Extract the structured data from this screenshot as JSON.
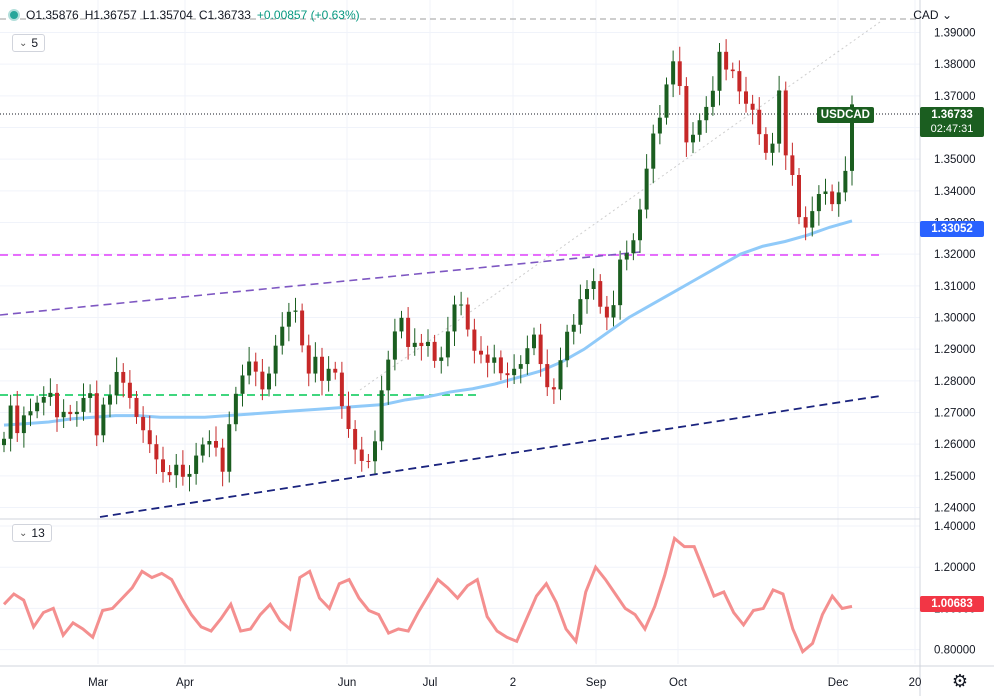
{
  "legend": {
    "open": "O1.35876",
    "high": "H1.36757",
    "low": "L1.35704",
    "close": "C1.36733",
    "change": "+0.00857 (+0.63%)"
  },
  "main_indicator_length": "5",
  "lower_indicator_length": "13",
  "currency": "CAD",
  "symbol_tag": {
    "symbol": "USDCAD",
    "price": "1.36733",
    "countdown": "02:47:31",
    "color": "#1b5e20"
  },
  "ma_tag": {
    "value": "1.33052",
    "color": "#2962ff"
  },
  "lower_tag": {
    "value": "1.00683",
    "color": "#f23645"
  },
  "colors": {
    "up": "#1b5e20",
    "down": "#c62828",
    "ma": "#90caf9",
    "oscillator": "#f48f8f",
    "magenta_line": "#e040fb",
    "green_line": "#00c853",
    "purple_line": "#7e57c2",
    "navy_line": "#1a237e",
    "gray_line": "#9e9e9e"
  },
  "chart_data": [
    {
      "type": "candlestick",
      "title": "USDCAD",
      "ylim": [
        1.237,
        1.399
      ],
      "y_ticks": [
        "1.39000",
        "1.38000",
        "1.37000",
        "1.36000",
        "1.35000",
        "1.34000",
        "1.33000",
        "1.32000",
        "1.31000",
        "1.30000",
        "1.29000",
        "1.28000",
        "1.27000",
        "1.26000",
        "1.25000",
        "1.24000"
      ],
      "x_ticks": [
        "Mar",
        "Apr",
        "Jun",
        "Jul",
        "2",
        "Sep",
        "Oct",
        "Dec",
        "20"
      ],
      "series": [
        {
          "values": [
            1.2617,
            1.2722,
            1.2635,
            1.2691,
            1.2704,
            1.2731,
            1.2749,
            1.2762,
            1.2685,
            1.2702,
            1.2695,
            1.2702,
            1.2746,
            1.2761,
            1.2628,
            1.2725,
            1.2754,
            1.2828,
            1.2794,
            1.2746,
            1.2686,
            1.2644,
            1.26,
            1.2552,
            1.2512,
            1.2502,
            1.2535,
            1.2497,
            1.2506,
            1.2564,
            1.2599,
            1.261,
            1.2589,
            1.2513,
            1.2663,
            1.2759,
            1.2817,
            1.2861,
            1.2829,
            1.2773,
            1.2823,
            1.2911,
            1.2971,
            1.3018,
            1.3022,
            1.2912,
            1.2823,
            1.2876,
            1.28,
            1.2838,
            1.2826,
            1.272,
            1.2648,
            1.2583,
            1.2547,
            1.2546,
            1.2609,
            1.277,
            1.2867,
            1.2956,
            1.2999,
            1.2907,
            1.292,
            1.291,
            1.2923,
            1.2863,
            1.2874,
            1.2956,
            1.3041,
            1.3041,
            1.2962,
            1.2895,
            1.2883,
            1.2857,
            1.2874,
            1.2824,
            1.2818,
            1.2838,
            1.2853,
            1.2903,
            1.2946,
            1.2853,
            1.278,
            1.2773,
            1.2865,
            1.2955,
            1.2977,
            1.3058,
            1.309,
            1.3115,
            1.3034,
            1.3,
            1.3039,
            1.3183,
            1.3203,
            1.3244,
            1.3341,
            1.347,
            1.3581,
            1.3631,
            1.3736,
            1.3809,
            1.3731,
            1.3553,
            1.3577,
            1.3623,
            1.3665,
            1.3716,
            1.3839,
            1.3783,
            1.3778,
            1.3714,
            1.3675,
            1.3656,
            1.3579,
            1.352,
            1.3549,
            1.3717,
            1.3512,
            1.345,
            1.3317,
            1.3284,
            1.3336,
            1.339,
            1.3398,
            1.3358,
            1.3395,
            1.3463,
            1.3673
          ]
        },
        {
          "name": "MA",
          "values": [
            1.266,
            1.2665,
            1.267,
            1.268,
            1.2685,
            1.269,
            1.269,
            1.2685,
            1.2685,
            1.2685,
            1.269,
            1.2695,
            1.27,
            1.2705,
            1.271,
            1.2715,
            1.272,
            1.2725,
            1.274,
            1.275,
            1.2765,
            1.2775,
            1.279,
            1.281,
            1.283,
            1.286,
            1.29,
            1.295,
            1.3,
            1.304,
            1.308,
            1.312,
            1.316,
            1.32,
            1.3225,
            1.324,
            1.326,
            1.3285,
            1.3305
          ]
        }
      ]
    },
    {
      "type": "line",
      "ylim": [
        0.73,
        1.41
      ],
      "y_ticks": [
        "1.40000",
        "1.20000",
        "1.00000",
        "0.80000"
      ],
      "series": [
        {
          "values": [
            1.02,
            1.07,
            1.04,
            0.91,
            0.98,
            1.0,
            0.87,
            0.93,
            0.9,
            0.86,
            0.99,
            1.0,
            1.05,
            1.1,
            1.18,
            1.15,
            1.17,
            1.14,
            1.05,
            0.97,
            0.91,
            0.89,
            0.95,
            1.02,
            0.89,
            0.9,
            0.97,
            1.02,
            0.94,
            0.9,
            1.15,
            1.18,
            1.05,
            1.0,
            1.12,
            1.14,
            1.05,
            0.99,
            0.97,
            0.88,
            0.9,
            0.89,
            0.98,
            1.06,
            1.14,
            1.1,
            1.05,
            1.11,
            1.14,
            0.96,
            0.89,
            0.86,
            0.84,
            0.95,
            1.06,
            1.12,
            1.03,
            0.9,
            0.84,
            1.08,
            1.2,
            1.14,
            1.07,
            1.0,
            0.97,
            0.9,
            1.01,
            1.16,
            1.34,
            1.3,
            1.3,
            1.18,
            1.06,
            1.08,
            0.98,
            0.92,
            0.99,
            1.0,
            1.09,
            1.07,
            0.9,
            0.79,
            0.83,
            0.97,
            1.06,
            1.0,
            1.01
          ]
        }
      ]
    }
  ]
}
